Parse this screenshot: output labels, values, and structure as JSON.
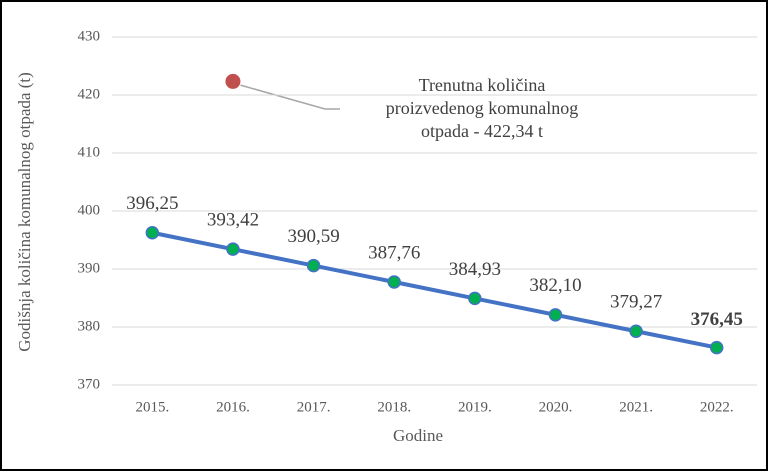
{
  "chart_data": {
    "type": "line",
    "categories": [
      "2015.",
      "2016.",
      "2017.",
      "2018.",
      "2019.",
      "2020.",
      "2021.",
      "2022."
    ],
    "series": [
      {
        "color": "#4472c4",
        "marker_color": "#00b050",
        "values": [
          396.25,
          393.42,
          390.59,
          387.76,
          384.93,
          382.1,
          379.27,
          376.45
        ],
        "value_labels": [
          "396,25",
          "393,42",
          "390,59",
          "387,76",
          "384,93",
          "382,10",
          "379,27",
          "376,45"
        ]
      },
      {
        "color": "#c0504d",
        "values": [
          null,
          422.34,
          null,
          null,
          null,
          null,
          null,
          null
        ]
      }
    ],
    "annotation": [
      "Trenutna količina",
      "proizvedenog komunalnog",
      "otpada - 422,34 t"
    ],
    "xlabel": "Godine",
    "ylabel": "Godišnja količina komunalnog otpada (t)",
    "ylim": [
      370,
      430
    ],
    "yticks": [
      370,
      380,
      390,
      400,
      410,
      420,
      430
    ],
    "grid": true
  }
}
